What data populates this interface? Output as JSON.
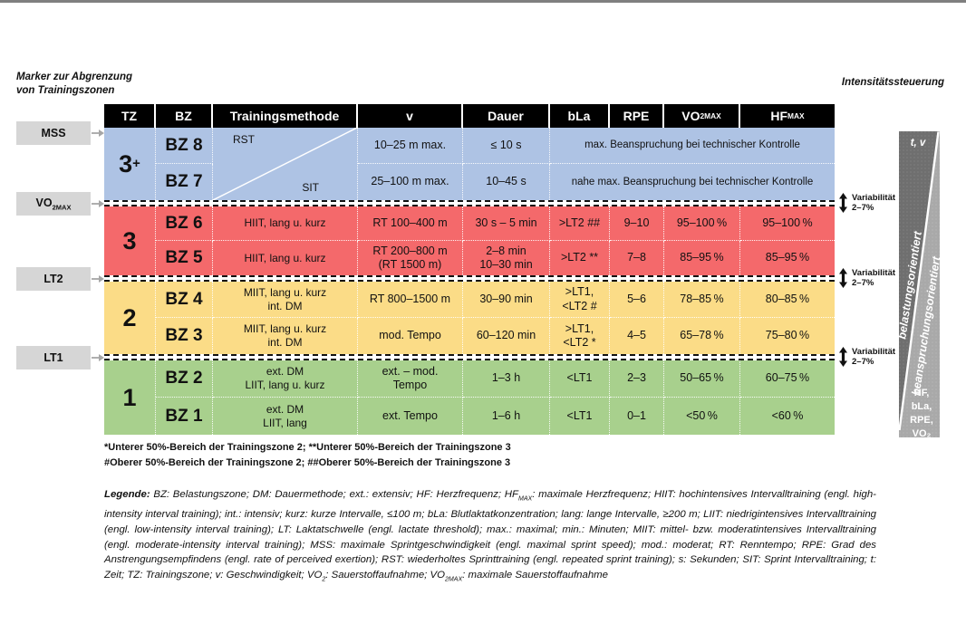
{
  "captions": {
    "marker": "Marker zur Abgrenzung\nvon Trainingszonen",
    "intensity": "Intensitätssteuerung"
  },
  "markers": [
    {
      "label": "MSS"
    },
    {
      "label": "VO~2MAX~"
    },
    {
      "label": "LT2"
    },
    {
      "label": "LT1"
    }
  ],
  "variability": {
    "label": "Variabilität",
    "value": "2–7%"
  },
  "table": {
    "headers": [
      "TZ",
      "BZ",
      "Trainingsmethode",
      "v",
      "Dauer",
      "bLa",
      "RPE",
      "VO~2MAX~",
      "HF~MAX~"
    ],
    "zones": [
      {
        "tz": "3^+^",
        "diagonal": {
          "top": "RST",
          "bottom": "SIT"
        },
        "rows": [
          {
            "bz": "BZ 8",
            "v": "10–25 m max.",
            "dauer": "≤ 10 s",
            "span": "max. Beanspruchung bei technischer Kontrolle"
          },
          {
            "bz": "BZ 7",
            "v": "25–100 m max.",
            "dauer": "10–45 s",
            "span": "nahe max. Beanspruchung bei technischer Kontrolle"
          }
        ]
      },
      {
        "tz": "3",
        "rows": [
          {
            "bz": "BZ 6",
            "methode": "HIIT, lang u. kurz",
            "v": "RT 100–400 m",
            "dauer": "30 s – 5 min",
            "bla": ">LT2 ##",
            "rpe": "9–10",
            "vo2max": "95–100 %",
            "hfmax": "95–100 %"
          },
          {
            "bz": "BZ 5",
            "methode": "HIIT, lang u. kurz",
            "v": "RT 200–800 m\n(RT 1500 m)",
            "dauer": "2–8 min\n10–30 min",
            "bla": ">LT2 **",
            "rpe": "7–8",
            "vo2max": "85–95 %",
            "hfmax": "85–95 %"
          }
        ]
      },
      {
        "tz": "2",
        "rows": [
          {
            "bz": "BZ 4",
            "methode": "MIIT, lang u. kurz\nint. DM",
            "v": "RT 800–1500 m",
            "dauer": "30–90 min",
            "bla": ">LT1,\n<LT2 #",
            "rpe": "5–6",
            "vo2max": "78–85 %",
            "hfmax": "80–85 %"
          },
          {
            "bz": "BZ 3",
            "methode": "MIIT, lang u. kurz\nint. DM",
            "v": "mod. Tempo",
            "dauer": "60–120 min",
            "bla": ">LT1,\n<LT2 *",
            "rpe": "4–5",
            "vo2max": "65–78 %",
            "hfmax": "75–80 %"
          }
        ]
      },
      {
        "tz": "1",
        "rows": [
          {
            "bz": "BZ 2",
            "methode": "ext. DM\nLIIT, lang u. kurz",
            "v": "ext. – mod.\nTempo",
            "dauer": "1–3 h",
            "bla": "<LT1",
            "rpe": "2–3",
            "vo2max": "50–65 %",
            "hfmax": "60–75 %"
          },
          {
            "bz": "BZ 1",
            "methode": "ext. DM\nLIIT, lang",
            "v": "ext. Tempo",
            "dauer": "1–6 h",
            "bla": "<LT1",
            "rpe": "0–1",
            "vo2max": "<50 %",
            "hfmax": "<60 %"
          }
        ]
      }
    ]
  },
  "footnotes": [
    "*Unterer 50%-Bereich der Trainingszone 2; **Unterer 50%-Bereich der Trainingszone 3",
    "#Oberer 50%-Bereich der Trainingszone 2; ##Oberer 50%-Bereich der Trainingszone 3"
  ],
  "legend": {
    "title": "Legende:",
    "text": "BZ: Belastungszone; DM: Dauermethode; ext.: extensiv; HF: Herzfrequenz; HF~MAX~: maximale Herzfrequenz; HIIT: hochintensives Intervalltraining (engl. high-intensity interval training); int.: intensiv; kurz: kurze Intervalle, ≤100 m; bLa: Blutlaktatkonzentration; lang: lange Intervalle, ≥200 m; LIIT: niedrigintensives Intervalltraining (engl. low-intensity interval training);  LT: Laktatschwelle (engl. lactate threshold); max.: maximal; min.: Minuten; MIIT: mittel- bzw. moderatintensives Intervalltraining (engl. moderate-intensity interval training); MSS: maximale Sprintgeschwindigkeit (engl. maximal sprint speed); mod.: moderat; RT: Renntempo; RPE: Grad des Anstrengungsempfindens (engl. rate of perceived exertion); RST: wiederholtes Sprinttraining (engl. repeated sprint training); s: Sekunden; SIT: Sprint Intervalltraining; t: Zeit; TZ: Trainingszone; v: Geschwindigkeit; VO~2~: Sauerstoffaufnahme; VO~2MAX~: maximale Sauerstoffaufnahme"
  },
  "intensity_bar": {
    "top": "t, v",
    "dark_label": "belastungsorientiert",
    "light_label": "beanspruchungsorientiert",
    "bottom_lines": [
      "HF,",
      "bLa,",
      "RPE,",
      "VO₂"
    ]
  },
  "colors": {
    "zone_blue": "#aec3e4",
    "zone_red": "#f4696b",
    "zone_yellow": "#fbdc87",
    "zone_green": "#a8d08d",
    "bar_dark": "#6f6f6f",
    "bar_light": "#a9a9a9",
    "marker_gray": "#d6d6d6",
    "header_black": "#000000"
  }
}
